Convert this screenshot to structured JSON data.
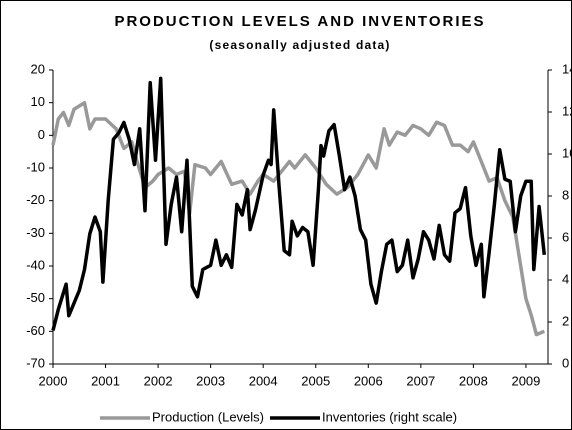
{
  "chart_data": {
    "type": "line",
    "title": "PRODUCTION LEVELS AND INVENTORIES",
    "subtitle": "(seasonally adjusted data)",
    "xlim": [
      2000,
      2009.42
    ],
    "xticks": [
      2000,
      2001,
      2002,
      2003,
      2004,
      2005,
      2006,
      2007,
      2008,
      2009
    ],
    "ylim": [
      -70,
      20
    ],
    "yticks": [
      -70,
      -60,
      -50,
      -40,
      -30,
      -20,
      -10,
      0,
      10,
      20
    ],
    "y2lim": [
      0,
      14
    ],
    "y2ticks": [
      0,
      2,
      4,
      6,
      8,
      10,
      12,
      14
    ],
    "legend": "bottom",
    "series": [
      {
        "name": "Production (Levels)",
        "color": "#999999",
        "axis": "y",
        "x": [
          2000.0,
          2000.1,
          2000.2,
          2000.3,
          2000.4,
          2000.6,
          2000.7,
          2000.8,
          2001.0,
          2001.2,
          2001.35,
          2001.5,
          2001.6,
          2001.75,
          2001.9,
          2002.0,
          2002.2,
          2002.35,
          2002.5,
          2002.6,
          2002.7,
          2002.9,
          2003.0,
          2003.2,
          2003.4,
          2003.6,
          2003.75,
          2003.9,
          2004.0,
          2004.2,
          2004.35,
          2004.5,
          2004.6,
          2004.8,
          2005.0,
          2005.2,
          2005.4,
          2005.6,
          2005.8,
          2006.0,
          2006.15,
          2006.3,
          2006.4,
          2006.55,
          2006.7,
          2006.85,
          2007.0,
          2007.15,
          2007.3,
          2007.45,
          2007.6,
          2007.75,
          2007.9,
          2008.0,
          2008.15,
          2008.3,
          2008.45,
          2008.6,
          2008.75,
          2008.9,
          2009.0,
          2009.1,
          2009.2,
          2009.35
        ],
        "values": [
          -3,
          5,
          7,
          3,
          8,
          10,
          2,
          5,
          5,
          2,
          -4,
          -2,
          -8,
          -16,
          -14,
          -12,
          -10,
          -12,
          -11,
          -24,
          -9,
          -10,
          -12,
          -8,
          -15,
          -14,
          -18,
          -14,
          -12,
          -14,
          -11,
          -8,
          -10,
          -6,
          -10,
          -15,
          -18,
          -16,
          -12,
          -6,
          -10,
          2,
          -3,
          1,
          0,
          3,
          2,
          0,
          4,
          3,
          -3,
          -3,
          -5,
          -2,
          -8,
          -14,
          -13,
          -20,
          -25,
          -40,
          -50,
          -55,
          -61,
          -60
        ]
      },
      {
        "name": "Inventories (right scale)",
        "color": "#000000",
        "axis": "y2",
        "x": [
          2000.0,
          2000.1,
          2000.25,
          2000.3,
          2000.5,
          2000.6,
          2000.7,
          2000.8,
          2000.9,
          2000.95,
          2001.05,
          2001.15,
          2001.25,
          2001.35,
          2001.45,
          2001.55,
          2001.65,
          2001.75,
          2001.85,
          2001.95,
          2002.05,
          2002.15,
          2002.25,
          2002.35,
          2002.45,
          2002.55,
          2002.65,
          2002.75,
          2002.85,
          2003.0,
          2003.1,
          2003.2,
          2003.3,
          2003.4,
          2003.5,
          2003.6,
          2003.7,
          2003.75,
          2003.85,
          2004.0,
          2004.1,
          2004.15,
          2004.2,
          2004.3,
          2004.4,
          2004.5,
          2004.55,
          2004.65,
          2004.75,
          2004.85,
          2004.95,
          2005.05,
          2005.1,
          2005.15,
          2005.25,
          2005.35,
          2005.45,
          2005.55,
          2005.65,
          2005.75,
          2005.85,
          2005.95,
          2006.05,
          2006.15,
          2006.25,
          2006.35,
          2006.45,
          2006.55,
          2006.65,
          2006.75,
          2006.85,
          2006.95,
          2007.05,
          2007.15,
          2007.25,
          2007.35,
          2007.45,
          2007.55,
          2007.65,
          2007.75,
          2007.85,
          2007.95,
          2008.05,
          2008.15,
          2008.2,
          2008.3,
          2008.4,
          2008.5,
          2008.6,
          2008.7,
          2008.8,
          2008.9,
          2009.0,
          2009.1,
          2009.15,
          2009.25,
          2009.35
        ],
        "values": [
          1.6,
          2.6,
          3.8,
          2.3,
          3.5,
          4.5,
          6.2,
          7.0,
          6.3,
          3.9,
          7.8,
          10.7,
          11.0,
          11.5,
          10.7,
          9.5,
          11.2,
          7.3,
          13.4,
          9.7,
          13.6,
          5.7,
          7.6,
          8.9,
          6.3,
          9.7,
          3.7,
          3.2,
          4.5,
          4.7,
          5.9,
          4.7,
          5.2,
          4.6,
          7.6,
          7.1,
          8.3,
          6.4,
          7.3,
          9.0,
          9.7,
          9.5,
          12.1,
          8.5,
          5.4,
          5.2,
          6.8,
          6.1,
          6.5,
          6.3,
          4.7,
          8.3,
          10.4,
          9.9,
          11.1,
          11.4,
          9.9,
          8.3,
          8.9,
          8.0,
          6.4,
          5.9,
          3.8,
          2.9,
          4.4,
          5.7,
          5.9,
          4.4,
          4.7,
          5.9,
          4.1,
          5.0,
          6.3,
          5.9,
          5.0,
          6.6,
          5.2,
          4.9,
          7.2,
          7.4,
          8.4,
          6.1,
          4.7,
          5.7,
          3.2,
          5.3,
          7.6,
          10.2,
          8.8,
          8.7,
          6.3,
          8.0,
          8.7,
          8.7,
          4.5,
          7.5,
          5.2
        ]
      }
    ]
  }
}
